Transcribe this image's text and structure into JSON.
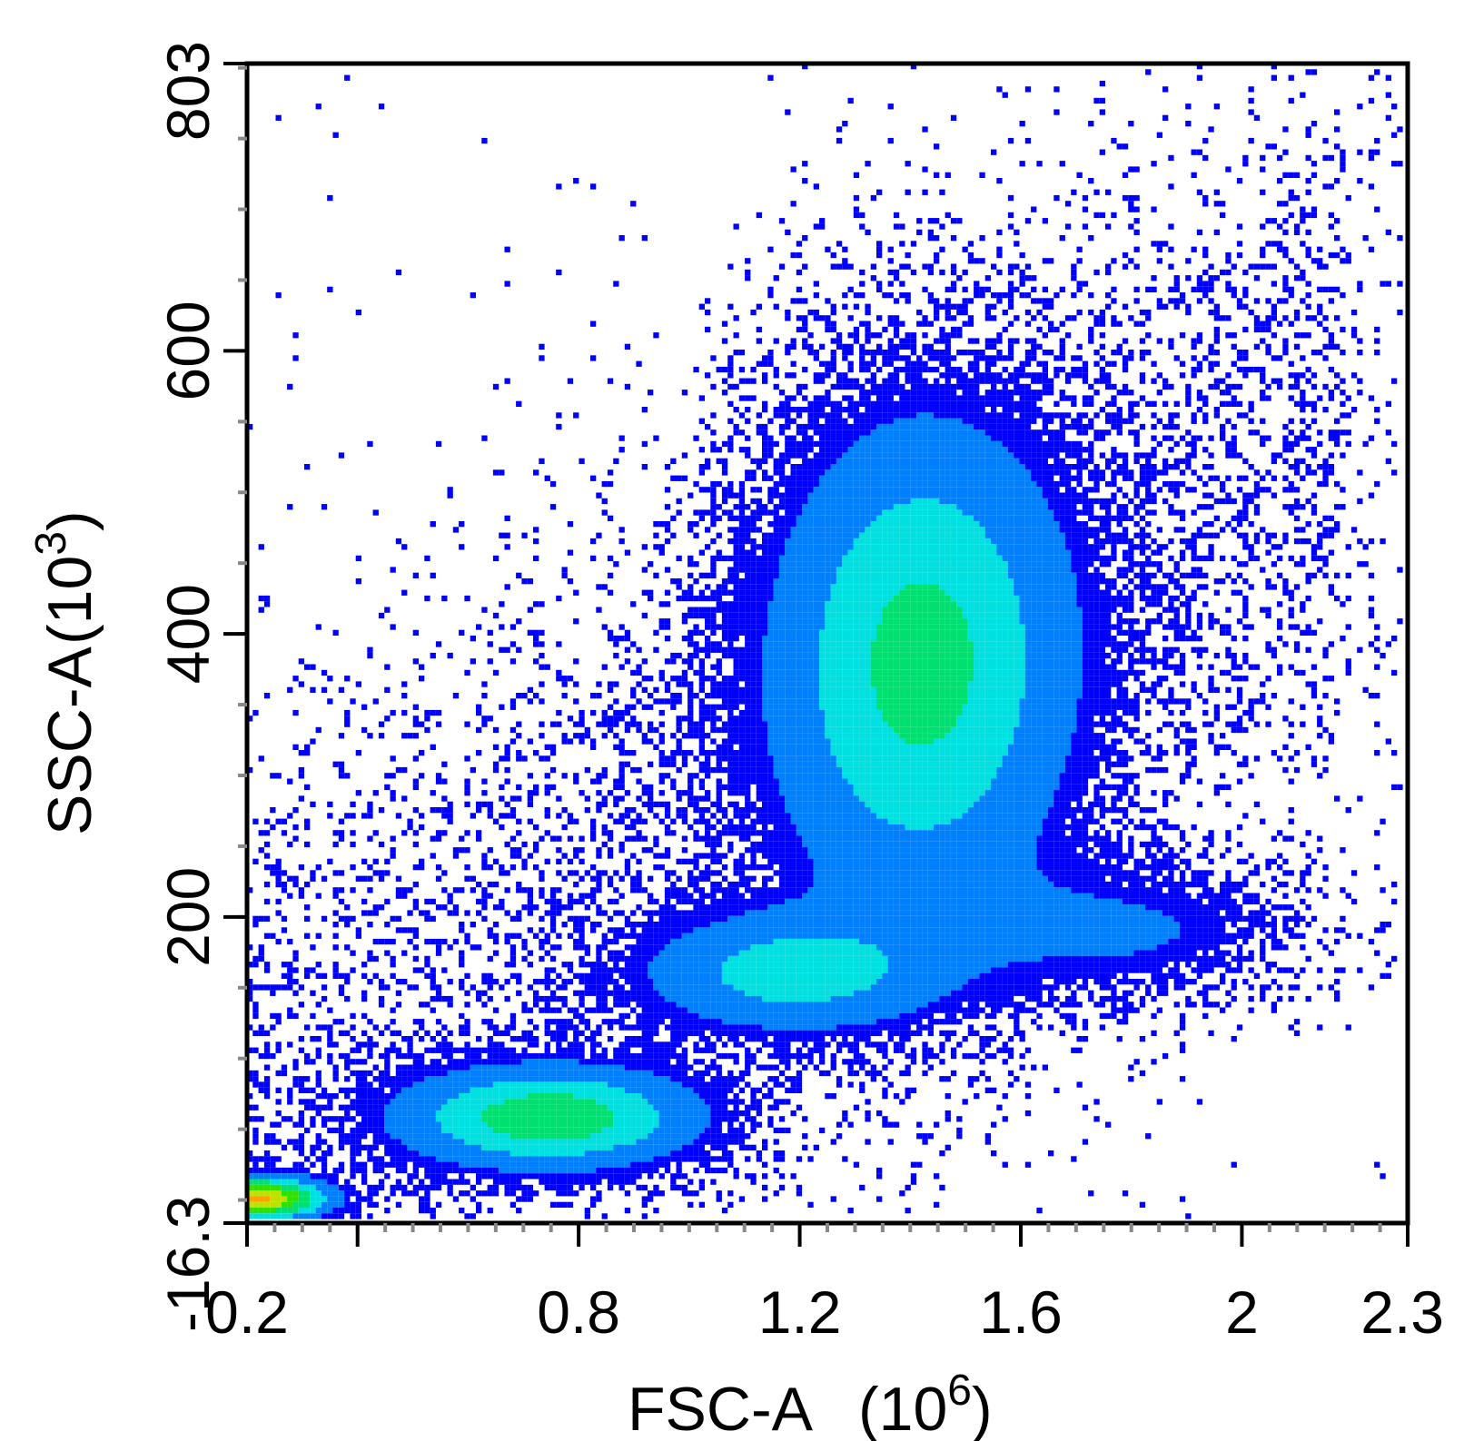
{
  "chart_data": {
    "type": "heatmap",
    "subtype": "flow-cytometry-density-scatter",
    "title": "",
    "xlabel": "FSC-A",
    "xunit_base": "(10",
    "xunit_exp": "6",
    "xunit_close": ")",
    "ylabel": "SSC-A",
    "yunit_base": "(10",
    "yunit_exp": "3",
    "yunit_close": ")",
    "xlim": [
      0.2,
      2.3
    ],
    "ylim": [
      -16.3,
      803
    ],
    "x_ticks": [
      {
        "value": 0.2,
        "label": "0.2"
      },
      {
        "value": 0.8,
        "label": "0.8"
      },
      {
        "value": 1.2,
        "label": "1.2"
      },
      {
        "value": 1.6,
        "label": "1.6"
      },
      {
        "value": 2.0,
        "label": "2"
      },
      {
        "value": 2.3,
        "label": "2.3"
      }
    ],
    "x_major_unlabeled": [
      0.4
    ],
    "y_ticks": [
      {
        "value": -16.3,
        "label": "-16.3"
      },
      {
        "value": 200,
        "label": "200"
      },
      {
        "value": 400,
        "label": "400"
      },
      {
        "value": 600,
        "label": "600"
      },
      {
        "value": 803,
        "label": "803"
      }
    ],
    "grid": false,
    "legend": "none",
    "colormap": [
      "#0000ff",
      "#0080ff",
      "#00e0e0",
      "#00e070",
      "#30e000",
      "#c0e000",
      "#ffa000",
      "#ff0000"
    ],
    "populations": [
      {
        "name": "",
        "center": [
          0.22,
          1
        ],
        "spread": [
          0.08,
          10
        ],
        "peak_density": 1.0
      },
      {
        "name": "",
        "center": [
          0.75,
          58
        ],
        "spread": [
          0.18,
          24
        ],
        "peak_density": 0.62
      },
      {
        "name": "",
        "center": [
          1.18,
          160
        ],
        "spread": [
          0.18,
          28
        ],
        "peak_density": 0.4
      },
      {
        "name": "",
        "center": [
          1.42,
          380
        ],
        "spread": [
          0.18,
          115
        ],
        "peak_density": 0.55
      },
      {
        "name": "",
        "center": [
          1.8,
          190
        ],
        "spread": [
          0.2,
          30
        ],
        "peak_density": 0.2
      }
    ]
  }
}
